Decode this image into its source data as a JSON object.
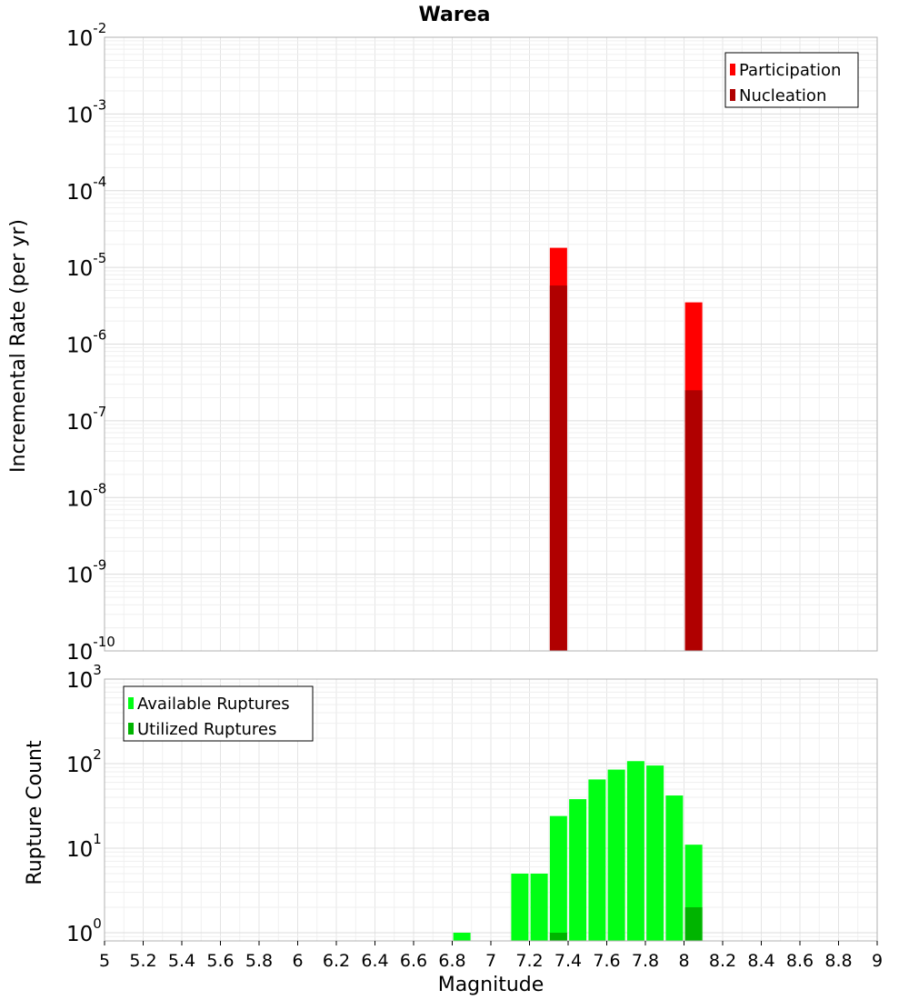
{
  "chart_data": [
    {
      "type": "bar",
      "title": "Warea",
      "ylabel": "Incremental Rate (per yr)",
      "xlabel": "",
      "xlim": [
        5,
        9
      ],
      "ylim": [
        1e-10,
        0.01
      ],
      "yscale": "log",
      "grid": true,
      "legend_position": "top-right",
      "y_ticks": [
        {
          "base": "10",
          "exp": "-2"
        },
        {
          "base": "10",
          "exp": "-3"
        },
        {
          "base": "10",
          "exp": "-4"
        },
        {
          "base": "10",
          "exp": "-5"
        },
        {
          "base": "10",
          "exp": "-6"
        },
        {
          "base": "10",
          "exp": "-7"
        },
        {
          "base": "10",
          "exp": "-8"
        },
        {
          "base": "10",
          "exp": "-9"
        },
        {
          "base": "10",
          "exp": "-10"
        }
      ],
      "series": [
        {
          "name": "Participation",
          "color": "#ff0000",
          "points": [
            {
              "x": 7.35,
              "y": 1.8e-05
            },
            {
              "x": 8.05,
              "y": 3.5e-06
            }
          ]
        },
        {
          "name": "Nucleation",
          "color": "#b00000",
          "points": [
            {
              "x": 7.35,
              "y": 5.8e-06
            },
            {
              "x": 8.05,
              "y": 2.5e-07
            }
          ]
        }
      ]
    },
    {
      "type": "bar",
      "title": "",
      "ylabel": "Rupture Count",
      "xlabel": "Magnitude",
      "xlim": [
        5,
        9
      ],
      "ylim": [
        0.8,
        1000
      ],
      "yscale": "log",
      "grid": true,
      "legend_position": "top-left",
      "x_ticks": [
        "5",
        "5.2",
        "5.4",
        "5.6",
        "5.8",
        "6",
        "6.2",
        "6.4",
        "6.6",
        "6.8",
        "7",
        "7.2",
        "7.4",
        "7.6",
        "7.8",
        "8",
        "8.2",
        "8.4",
        "8.6",
        "8.8",
        "9"
      ],
      "y_ticks": [
        {
          "base": "10",
          "exp": "3"
        },
        {
          "base": "10",
          "exp": "2"
        },
        {
          "base": "10",
          "exp": "1"
        },
        {
          "base": "10",
          "exp": "0"
        }
      ],
      "series": [
        {
          "name": "Available Ruptures",
          "color": "#00ff14",
          "points": [
            {
              "x": 6.85,
              "y": 1
            },
            {
              "x": 7.15,
              "y": 5
            },
            {
              "x": 7.25,
              "y": 5
            },
            {
              "x": 7.35,
              "y": 24
            },
            {
              "x": 7.45,
              "y": 38
            },
            {
              "x": 7.55,
              "y": 65
            },
            {
              "x": 7.65,
              "y": 85
            },
            {
              "x": 7.75,
              "y": 107
            },
            {
              "x": 7.85,
              "y": 95
            },
            {
              "x": 7.95,
              "y": 42
            },
            {
              "x": 8.05,
              "y": 11
            }
          ]
        },
        {
          "name": "Utilized Ruptures",
          "color": "#00b400",
          "points": [
            {
              "x": 7.35,
              "y": 1
            },
            {
              "x": 8.05,
              "y": 2
            }
          ]
        }
      ]
    }
  ]
}
